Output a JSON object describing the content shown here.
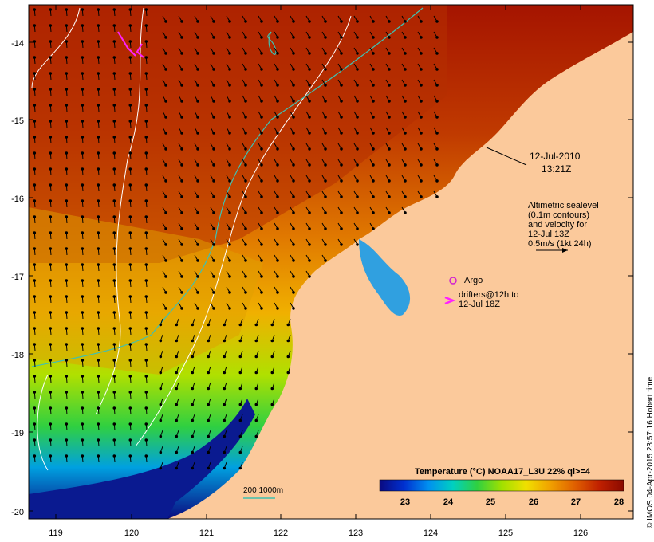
{
  "map": {
    "date": "12-Jul-2010",
    "time": "13:21Z",
    "legend_lines": [
      "Altimetric sealevel",
      "(0.1m contours)",
      "and velocity for",
      "12-Jul 13Z",
      "0.5m/s (1kt 24h)"
    ],
    "argo_label": "Argo",
    "drifters_lines": [
      "drifters@12h to",
      "12-Jul 18Z"
    ],
    "bathy_label": "200  1000m",
    "credit": "© IMOS 04-Apr-2015 23:57:16 Hobart time",
    "lat_ticks": [
      "-14",
      "-15",
      "-16",
      "-17",
      "-18",
      "-19",
      "-20"
    ],
    "lon_ticks": [
      "119",
      "120",
      "121",
      "122",
      "123",
      "124",
      "125",
      "126"
    ],
    "colors": {
      "land": "#fbc99b",
      "argo": "#d020d0",
      "drifter": "#ff20ff",
      "contour": "#ffffff",
      "bathy": "#40c0b0"
    }
  },
  "colorbar": {
    "title": "Temperature (°C) NOAA17_L3U 22% ql>=4",
    "ticks": [
      "23",
      "24",
      "25",
      "26",
      "27",
      "28"
    ],
    "range": [
      22.5,
      28.2
    ],
    "colors": [
      "#0a0a80",
      "#0030d0",
      "#0090f0",
      "#00d0c0",
      "#30d040",
      "#a0e000",
      "#f0e000",
      "#f0a000",
      "#e06000",
      "#c02000",
      "#8a0a00"
    ]
  }
}
